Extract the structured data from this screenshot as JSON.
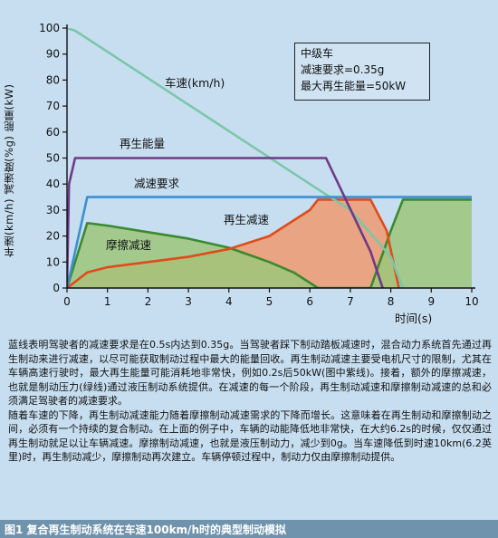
{
  "chart_data": {
    "type": "line",
    "title": "",
    "xlabel": "时间(s)",
    "ylabel": "车速(km/h)  减速度(%g)  能量(kW)",
    "xlim": [
      0,
      10
    ],
    "ylim": [
      0,
      100
    ],
    "x_ticks": [
      0,
      1,
      2,
      3,
      4,
      5,
      6,
      7,
      8,
      9,
      10
    ],
    "y_ticks": [
      0,
      10,
      20,
      30,
      40,
      50,
      60,
      70,
      80,
      90,
      100
    ],
    "grid": false,
    "series": [
      {
        "name": "车速(km/h)",
        "color": "#7cc6a9",
        "fill": false,
        "x": [
          0,
          0.2,
          0.4,
          6.2,
          7,
          8,
          8.3
        ],
        "y": [
          100,
          99,
          97,
          38,
          30,
          12,
          0
        ]
      },
      {
        "name": "再生能量",
        "color": "#6e3a87",
        "fill": false,
        "x": [
          0,
          0.05,
          0.2,
          6.4,
          7.5,
          7.8
        ],
        "y": [
          0,
          40,
          50,
          50,
          14,
          0
        ]
      },
      {
        "name": "减速要求",
        "color": "#3d8fd0",
        "fill": false,
        "x": [
          0,
          0.5,
          10
        ],
        "y": [
          0,
          35,
          35
        ]
      },
      {
        "name": "再生减速",
        "color": "#e04b1a",
        "fill": true,
        "fillColor": "#ef9a70",
        "x": [
          0,
          0.5,
          1,
          2,
          3,
          4,
          5,
          6,
          6.2,
          7.5,
          7.9,
          8.2
        ],
        "y": [
          0,
          6,
          8,
          10,
          12,
          15,
          20,
          30,
          34,
          34,
          22,
          0
        ]
      },
      {
        "name": "摩擦减速",
        "color": "#3a8a2f",
        "fill": true,
        "fillColor": "#9cc77a",
        "x": [
          0,
          0.5,
          1,
          2,
          3,
          4,
          5,
          5.6,
          6.2,
          7.5,
          8,
          8.3,
          10
        ],
        "y": [
          0,
          25,
          24,
          21.5,
          19,
          15.5,
          10,
          6,
          0,
          0,
          22,
          34,
          34
        ]
      }
    ]
  },
  "box": {
    "line1": "中级车",
    "line2": "减速要求=0.35g",
    "line3": "最大再生能量=50kW"
  },
  "description": {
    "p1": "蓝线表明驾驶者的减速要求是在0.5s内达到0.35g。当驾驶者踩下制动踏板减速时，混合动力系统首先通过再生制动来进行减速，以尽可能获取制动过程中最大的能量回收。再生制动减速主要受电机尺寸的限制，尤其在车辆高速行驶时，最大再生能量可能消耗地非常快，例如0.2s后50kW(图中紫线)。接着，额外的摩擦减速，也就是制动压力(绿线)通过液压制动系统提供。在减速的每一个阶段，再生制动减速和摩擦制动减速的总和必须满足驾驶者的减速要求。",
    "p2": "随着车速的下降，再生制动减速能力随着摩擦制动减速需求的下降而增长。这意味着在再生制动和摩擦制动之间，必须有一个持续的复合制动。在上面的例子中，车辆的动能降低地非常快，在大约6.2s的时候，仅仅通过再生制动就足以让车辆减速。摩擦制动减速，也就是液压制动力，减少到0g。当车速降低到时速10km(6.2英里)时，再生制动减少，摩擦制动再次建立。车辆停顿过程中，制动力仅由摩擦制动提供。"
  },
  "caption": "图1 复合再生制动系统在车速100km/h时的典型制动模拟"
}
